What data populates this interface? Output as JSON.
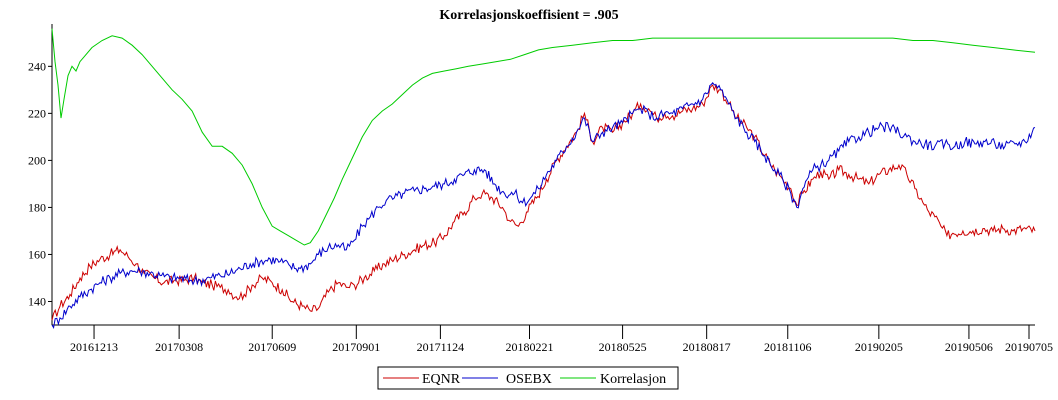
{
  "chart_data": {
    "type": "line",
    "title": "Korrelasjonskoeffisient =  .905",
    "xlabel": "",
    "ylabel": "",
    "ylim": [
      130,
      258
    ],
    "y_ticks": [
      140,
      160,
      180,
      200,
      220,
      240
    ],
    "x_tick_labels": [
      "20161213",
      "20170308",
      "20170609",
      "20170901",
      "20171124",
      "20180221",
      "20180525",
      "20180817",
      "20181106",
      "20190205",
      "20190506",
      "20190705"
    ],
    "x_tick_days": [
      42,
      127,
      220,
      304,
      388,
      477,
      570,
      654,
      735,
      826,
      916,
      976
    ],
    "x_range_days": [
      0,
      982
    ],
    "legend_position": "bottom-center",
    "grid": false,
    "series": [
      {
        "name": "EQNR",
        "color": "#cc0000",
        "points": [
          [
            0,
            132
          ],
          [
            8,
            138
          ],
          [
            18,
            143
          ],
          [
            28,
            150
          ],
          [
            38,
            155
          ],
          [
            48,
            158
          ],
          [
            58,
            160
          ],
          [
            68,
            162
          ],
          [
            76,
            159
          ],
          [
            84,
            156
          ],
          [
            92,
            152
          ],
          [
            102,
            150
          ],
          [
            112,
            148
          ],
          [
            122,
            149
          ],
          [
            132,
            149
          ],
          [
            142,
            150
          ],
          [
            150,
            148
          ],
          [
            160,
            147
          ],
          [
            168,
            146
          ],
          [
            176,
            145
          ],
          [
            184,
            142
          ],
          [
            192,
            143
          ],
          [
            200,
            147
          ],
          [
            210,
            150
          ],
          [
            220,
            148
          ],
          [
            230,
            145
          ],
          [
            240,
            140
          ],
          [
            250,
            138
          ],
          [
            258,
            136
          ],
          [
            266,
            137
          ],
          [
            276,
            144
          ],
          [
            286,
            148
          ],
          [
            294,
            146
          ],
          [
            302,
            147
          ],
          [
            312,
            150
          ],
          [
            322,
            153
          ],
          [
            332,
            156
          ],
          [
            342,
            158
          ],
          [
            352,
            160
          ],
          [
            362,
            162
          ],
          [
            372,
            164
          ],
          [
            382,
            165
          ],
          [
            392,
            168
          ],
          [
            402,
            174
          ],
          [
            412,
            178
          ],
          [
            422,
            184
          ],
          [
            430,
            186
          ],
          [
            440,
            184
          ],
          [
            450,
            180
          ],
          [
            458,
            174
          ],
          [
            466,
            172
          ],
          [
            474,
            178
          ],
          [
            484,
            184
          ],
          [
            494,
            192
          ],
          [
            504,
            200
          ],
          [
            514,
            206
          ],
          [
            524,
            212
          ],
          [
            532,
            220
          ],
          [
            540,
            208
          ],
          [
            550,
            214
          ],
          [
            560,
            212
          ],
          [
            570,
            216
          ],
          [
            580,
            220
          ],
          [
            588,
            224
          ],
          [
            596,
            222
          ],
          [
            604,
            218
          ],
          [
            612,
            220
          ],
          [
            620,
            219
          ],
          [
            630,
            221
          ],
          [
            640,
            222
          ],
          [
            650,
            224
          ],
          [
            660,
            232
          ],
          [
            668,
            230
          ],
          [
            676,
            224
          ],
          [
            684,
            218
          ],
          [
            694,
            214
          ],
          [
            702,
            210
          ],
          [
            712,
            202
          ],
          [
            722,
            196
          ],
          [
            730,
            192
          ],
          [
            738,
            188
          ],
          [
            744,
            181
          ],
          [
            750,
            186
          ],
          [
            760,
            192
          ],
          [
            768,
            195
          ],
          [
            776,
            192
          ],
          [
            786,
            196
          ],
          [
            796,
            194
          ],
          [
            806,
            192
          ],
          [
            816,
            190
          ],
          [
            826,
            194
          ],
          [
            836,
            196
          ],
          [
            846,
            198
          ],
          [
            854,
            194
          ],
          [
            862,
            188
          ],
          [
            870,
            182
          ],
          [
            876,
            178
          ],
          [
            882,
            176
          ],
          [
            888,
            172
          ],
          [
            894,
            168
          ],
          [
            900,
            169
          ],
          [
            910,
            170
          ],
          [
            920,
            170
          ],
          [
            930,
            171
          ],
          [
            940,
            170
          ],
          [
            950,
            171
          ],
          [
            960,
            170
          ],
          [
            970,
            171
          ],
          [
            982,
            170
          ]
        ]
      },
      {
        "name": "OSEBX",
        "color": "#0000cc",
        "points": [
          [
            0,
            130
          ],
          [
            8,
            133
          ],
          [
            18,
            138
          ],
          [
            28,
            142
          ],
          [
            38,
            145
          ],
          [
            48,
            148
          ],
          [
            58,
            150
          ],
          [
            68,
            152
          ],
          [
            78,
            153
          ],
          [
            88,
            153
          ],
          [
            98,
            152
          ],
          [
            108,
            151
          ],
          [
            118,
            150
          ],
          [
            128,
            150
          ],
          [
            138,
            149
          ],
          [
            148,
            149
          ],
          [
            158,
            150
          ],
          [
            168,
            151
          ],
          [
            178,
            152
          ],
          [
            188,
            154
          ],
          [
            198,
            156
          ],
          [
            208,
            157
          ],
          [
            218,
            158
          ],
          [
            228,
            157
          ],
          [
            238,
            155
          ],
          [
            248,
            154
          ],
          [
            258,
            156
          ],
          [
            266,
            160
          ],
          [
            276,
            163
          ],
          [
            286,
            164
          ],
          [
            294,
            162
          ],
          [
            302,
            166
          ],
          [
            310,
            172
          ],
          [
            318,
            176
          ],
          [
            326,
            180
          ],
          [
            334,
            183
          ],
          [
            342,
            184
          ],
          [
            352,
            186
          ],
          [
            362,
            187
          ],
          [
            372,
            188
          ],
          [
            382,
            189
          ],
          [
            392,
            190
          ],
          [
            402,
            192
          ],
          [
            412,
            194
          ],
          [
            422,
            196
          ],
          [
            432,
            196
          ],
          [
            442,
            190
          ],
          [
            452,
            186
          ],
          [
            462,
            186
          ],
          [
            470,
            182
          ],
          [
            478,
            184
          ],
          [
            486,
            188
          ],
          [
            494,
            194
          ],
          [
            504,
            200
          ],
          [
            514,
            206
          ],
          [
            524,
            212
          ],
          [
            532,
            218
          ],
          [
            540,
            208
          ],
          [
            550,
            212
          ],
          [
            560,
            214
          ],
          [
            570,
            216
          ],
          [
            580,
            220
          ],
          [
            588,
            222
          ],
          [
            596,
            220
          ],
          [
            604,
            218
          ],
          [
            612,
            220
          ],
          [
            620,
            220
          ],
          [
            630,
            222
          ],
          [
            640,
            224
          ],
          [
            650,
            226
          ],
          [
            660,
            233
          ],
          [
            668,
            230
          ],
          [
            676,
            224
          ],
          [
            684,
            218
          ],
          [
            694,
            212
          ],
          [
            702,
            208
          ],
          [
            712,
            202
          ],
          [
            722,
            196
          ],
          [
            730,
            192
          ],
          [
            738,
            186
          ],
          [
            744,
            180
          ],
          [
            750,
            188
          ],
          [
            760,
            196
          ],
          [
            768,
            198
          ],
          [
            776,
            200
          ],
          [
            786,
            204
          ],
          [
            796,
            208
          ],
          [
            806,
            210
          ],
          [
            816,
            212
          ],
          [
            826,
            214
          ],
          [
            836,
            214
          ],
          [
            846,
            212
          ],
          [
            854,
            210
          ],
          [
            862,
            208
          ],
          [
            872,
            207
          ],
          [
            882,
            206
          ],
          [
            892,
            207
          ],
          [
            902,
            206
          ],
          [
            912,
            208
          ],
          [
            922,
            207
          ],
          [
            932,
            208
          ],
          [
            942,
            207
          ],
          [
            952,
            206
          ],
          [
            962,
            207
          ],
          [
            972,
            208
          ],
          [
            982,
            214
          ]
        ]
      },
      {
        "name": "Korrelasjon",
        "color": "#00cc00",
        "points": [
          [
            0,
            256
          ],
          [
            3,
            242
          ],
          [
            6,
            232
          ],
          [
            9,
            218
          ],
          [
            12,
            226
          ],
          [
            16,
            236
          ],
          [
            20,
            240
          ],
          [
            24,
            238
          ],
          [
            28,
            242
          ],
          [
            32,
            244
          ],
          [
            40,
            248
          ],
          [
            50,
            251
          ],
          [
            60,
            253
          ],
          [
            70,
            252
          ],
          [
            80,
            249
          ],
          [
            90,
            245
          ],
          [
            100,
            240
          ],
          [
            110,
            235
          ],
          [
            120,
            230
          ],
          [
            130,
            226
          ],
          [
            140,
            221
          ],
          [
            150,
            212
          ],
          [
            160,
            206
          ],
          [
            170,
            206
          ],
          [
            180,
            203
          ],
          [
            190,
            198
          ],
          [
            200,
            190
          ],
          [
            210,
            180
          ],
          [
            220,
            172
          ],
          [
            228,
            170
          ],
          [
            236,
            168
          ],
          [
            244,
            166
          ],
          [
            252,
            164
          ],
          [
            258,
            165
          ],
          [
            266,
            170
          ],
          [
            274,
            177
          ],
          [
            282,
            184
          ],
          [
            290,
            192
          ],
          [
            300,
            201
          ],
          [
            310,
            210
          ],
          [
            320,
            217
          ],
          [
            330,
            221
          ],
          [
            340,
            224
          ],
          [
            350,
            228
          ],
          [
            360,
            232
          ],
          [
            370,
            235
          ],
          [
            380,
            237
          ],
          [
            392,
            238
          ],
          [
            404,
            239
          ],
          [
            416,
            240
          ],
          [
            430,
            241
          ],
          [
            444,
            242
          ],
          [
            458,
            243
          ],
          [
            472,
            245
          ],
          [
            486,
            247
          ],
          [
            500,
            248
          ],
          [
            520,
            249
          ],
          [
            540,
            250
          ],
          [
            560,
            251
          ],
          [
            580,
            251
          ],
          [
            600,
            252
          ],
          [
            640,
            252
          ],
          [
            680,
            252
          ],
          [
            720,
            252
          ],
          [
            760,
            252
          ],
          [
            800,
            252
          ],
          [
            840,
            252
          ],
          [
            860,
            251
          ],
          [
            880,
            251
          ],
          [
            900,
            250
          ],
          [
            920,
            249
          ],
          [
            940,
            248
          ],
          [
            960,
            247
          ],
          [
            982,
            246
          ]
        ]
      }
    ]
  }
}
